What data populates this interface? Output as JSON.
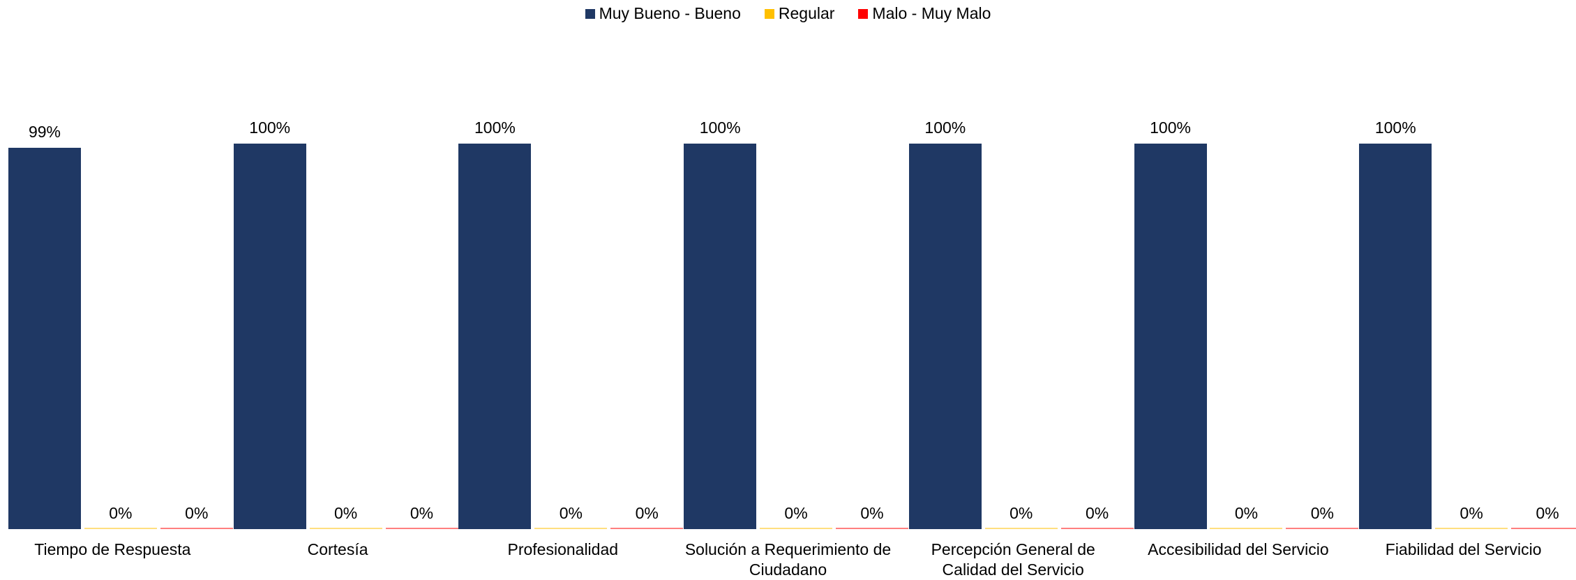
{
  "chart_data": {
    "type": "bar",
    "categories": [
      "Tiempo de Respuesta",
      "Cortesía",
      "Profesionalidad",
      "Solución a Requerimiento de Ciudadano",
      "Percepción General de Calidad del Servicio",
      "Accesibilidad del Servicio",
      "Fiabilidad del Servicio"
    ],
    "series": [
      {
        "name": "Muy Bueno - Bueno",
        "color": "#1f3864",
        "values": [
          99,
          100,
          100,
          100,
          100,
          100,
          100
        ],
        "value_labels": [
          "99%",
          "100%",
          "100%",
          "100%",
          "100%",
          "100%",
          "100%"
        ]
      },
      {
        "name": "Regular",
        "color": "#ffc000",
        "values": [
          0,
          0,
          0,
          0,
          0,
          0,
          0
        ],
        "value_labels": [
          "0%",
          "0%",
          "0%",
          "0%",
          "0%",
          "0%",
          "0%"
        ]
      },
      {
        "name": "Malo - Muy Malo",
        "color": "#ff0000",
        "values": [
          0,
          0,
          0,
          0,
          0,
          0,
          0
        ],
        "value_labels": [
          "0%",
          "0%",
          "0%",
          "0%",
          "0%",
          "0%",
          "0%"
        ]
      }
    ],
    "ylim": [
      0,
      100
    ],
    "legend": "top"
  }
}
